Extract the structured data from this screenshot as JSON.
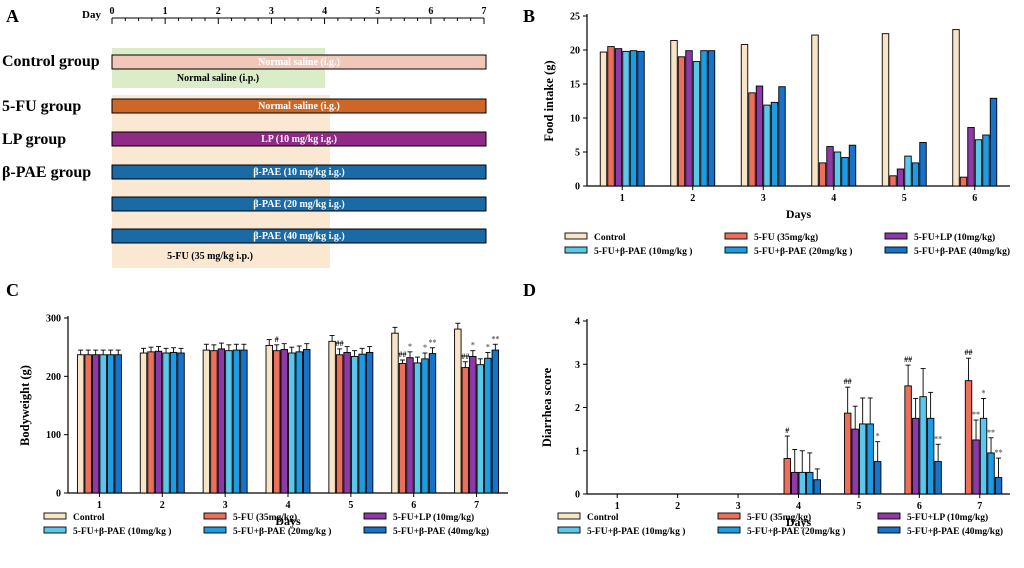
{
  "colors": {
    "control": "#f8e4c6",
    "fu": "#ec6f5b",
    "lp": "#8d3aa8",
    "pae10": "#5bc7ec",
    "pae20": "#1d9be3",
    "pae40": "#1772c9",
    "ctrl_bar_fill": "#f1c7ba",
    "fu_bar_fill": "#cc6727",
    "lp_bar_fill": "#8f2a86",
    "pae_bar_fill": "#1a6aa6",
    "ctrl_shade": "#dbecc8",
    "fu_shade": "#fae8d3",
    "annot": "#666666"
  },
  "legend": {
    "items": [
      {
        "key": "control",
        "label": "Control"
      },
      {
        "key": "fu",
        "label": "5-FU (35mg/kg)"
      },
      {
        "key": "lp",
        "label": "5-FU+LP (10mg/kg)"
      },
      {
        "key": "pae10",
        "label": "5-FU+β-PAE (10mg/kg )"
      },
      {
        "key": "pae20",
        "label": "5-FU+β-PAE (20mg/kg )"
      },
      {
        "key": "pae40",
        "label": "5-FU+β-PAE (40mg/kg)"
      }
    ]
  },
  "panels": {
    "a": {
      "letter": "A",
      "timeline_label": "Day",
      "days": [
        "0",
        "1",
        "2",
        "3",
        "4",
        "5",
        "6",
        "7"
      ],
      "groups": [
        {
          "name": "Control group",
          "bars": [
            {
              "label": "Normal saline (i.g.)",
              "fill": "ctrl_bar_fill"
            }
          ]
        },
        {
          "name": "5-FU group",
          "bars": [
            {
              "label": "Normal saline (i.g.)",
              "fill": "fu_bar_fill"
            }
          ]
        },
        {
          "name": "LP group",
          "bars": [
            {
              "label": "LP (10 mg/kg i.g.)",
              "fill": "lp_bar_fill"
            }
          ]
        },
        {
          "name": "β-PAE group",
          "bars": [
            {
              "label": "β-PAE (10 mg/kg i.g.)",
              "fill": "pae_bar_fill"
            },
            {
              "label": "β-PAE (20 mg/kg i.g.)",
              "fill": "pae_bar_fill"
            },
            {
              "label": "β-PAE (40 mg/kg i.g.)",
              "fill": "pae_bar_fill"
            }
          ]
        }
      ],
      "control_shade_label": "Normal saline (i.p.)",
      "fu_shade_label": "5-FU (35 mg/kg i.p.)",
      "treatment_start_day": 0,
      "treatment_end_day": 7,
      "injection_end_day": 4
    },
    "b": {
      "letter": "B"
    },
    "c": {
      "letter": "C"
    },
    "d": {
      "letter": "D"
    }
  },
  "chart_data": [
    {
      "id": "b",
      "type": "bar",
      "title": "",
      "xlabel": "Days",
      "ylabel": "Food intake (g)",
      "categories": [
        "1",
        "2",
        "3",
        "4",
        "5",
        "6"
      ],
      "ylim": [
        0,
        25
      ],
      "yticks": [
        0,
        5,
        10,
        15,
        20,
        25
      ],
      "series": [
        {
          "name": "Control",
          "key": "control",
          "values": [
            19.7,
            21.4,
            20.8,
            22.2,
            22.4,
            23.0
          ]
        },
        {
          "name": "5-FU (35mg/kg)",
          "key": "fu",
          "values": [
            20.5,
            19.0,
            13.7,
            3.4,
            1.5,
            1.3
          ]
        },
        {
          "name": "5-FU+LP (10mg/kg)",
          "key": "lp",
          "values": [
            20.2,
            19.9,
            14.7,
            5.8,
            2.5,
            8.6
          ]
        },
        {
          "name": "5-FU+β-PAE (10mg/kg )",
          "key": "pae10",
          "values": [
            19.8,
            18.3,
            11.9,
            5.0,
            4.4,
            6.8
          ]
        },
        {
          "name": "5-FU+β-PAE (20mg/kg )",
          "key": "pae20",
          "values": [
            19.9,
            19.9,
            12.3,
            4.2,
            3.4,
            7.5
          ]
        },
        {
          "name": "5-FU+β-PAE (40mg/kg)",
          "key": "pae40",
          "values": [
            19.8,
            19.9,
            14.6,
            6.0,
            6.4,
            12.9
          ]
        }
      ]
    },
    {
      "id": "c",
      "type": "bar",
      "title": "",
      "xlabel": "Days",
      "ylabel": "Bodyweight (g)",
      "categories": [
        "1",
        "2",
        "3",
        "4",
        "5",
        "6",
        "7"
      ],
      "ylim": [
        0,
        300
      ],
      "yticks": [
        0,
        100,
        200,
        300
      ],
      "series": [
        {
          "name": "Control",
          "key": "control",
          "values": [
            237,
            240,
            245,
            253,
            260,
            274,
            281
          ],
          "errors": [
            8,
            8,
            10,
            10,
            10,
            10,
            10
          ]
        },
        {
          "name": "5-FU (35mg/kg)",
          "key": "fu",
          "values": [
            237,
            242,
            244,
            244,
            237,
            222,
            215
          ],
          "errors": [
            8,
            8,
            10,
            10,
            10,
            6,
            10
          ]
        },
        {
          "name": "5-FU+LP (10mg/kg)",
          "key": "lp",
          "values": [
            237,
            243,
            247,
            246,
            241,
            232,
            234
          ],
          "errors": [
            8,
            8,
            10,
            10,
            10,
            10,
            10
          ]
        },
        {
          "name": "5-FU+β-PAE (10mg/kg )",
          "key": "pae10",
          "values": [
            237,
            240,
            244,
            240,
            234,
            223,
            220
          ],
          "errors": [
            8,
            8,
            10,
            10,
            10,
            10,
            10
          ]
        },
        {
          "name": "5-FU+β-PAE (20mg/kg )",
          "key": "pae20",
          "values": [
            237,
            241,
            245,
            242,
            238,
            230,
            231
          ],
          "errors": [
            8,
            8,
            10,
            10,
            10,
            10,
            10
          ]
        },
        {
          "name": "5-FU+β-PAE (40mg/kg)",
          "key": "pae40",
          "values": [
            237,
            240,
            245,
            246,
            241,
            239,
            245
          ],
          "errors": [
            8,
            8,
            10,
            10,
            10,
            10,
            10
          ]
        }
      ],
      "annotations": [
        {
          "category": "4",
          "series": "fu",
          "text": "#"
        },
        {
          "category": "5",
          "series": "fu",
          "text": "##"
        },
        {
          "category": "6",
          "series": "fu",
          "text": "##"
        },
        {
          "category": "6",
          "series": "lp",
          "text": "*"
        },
        {
          "category": "6",
          "series": "pae20",
          "text": "*"
        },
        {
          "category": "6",
          "series": "pae40",
          "text": "**"
        },
        {
          "category": "7",
          "series": "fu",
          "text": "##"
        },
        {
          "category": "7",
          "series": "lp",
          "text": "*"
        },
        {
          "category": "7",
          "series": "pae20",
          "text": "*"
        },
        {
          "category": "7",
          "series": "pae40",
          "text": "**"
        }
      ]
    },
    {
      "id": "d",
      "type": "bar",
      "title": "",
      "xlabel": "Days",
      "ylabel": "Diarrhea score",
      "categories": [
        "1",
        "2",
        "3",
        "4",
        "5",
        "6",
        "7"
      ],
      "ylim": [
        0,
        4
      ],
      "yticks": [
        0,
        1,
        2,
        3,
        4
      ],
      "series": [
        {
          "name": "Control",
          "key": "control",
          "values": [
            0,
            0,
            0,
            0,
            0,
            0,
            0
          ],
          "errors": [
            0,
            0,
            0,
            0,
            0,
            0,
            0
          ]
        },
        {
          "name": "5-FU (35mg/kg)",
          "key": "fu",
          "values": [
            0,
            0,
            0,
            0.82,
            1.87,
            2.5,
            2.62
          ],
          "errors": [
            0,
            0,
            0,
            0.52,
            0.6,
            0.48,
            0.52
          ]
        },
        {
          "name": "5-FU+LP (10mg/kg)",
          "key": "lp",
          "values": [
            0,
            0,
            0,
            0.5,
            1.5,
            1.75,
            1.25
          ],
          "errors": [
            0,
            0,
            0,
            0.53,
            0.53,
            0.46,
            0.46
          ]
        },
        {
          "name": "5-FU+β-PAE (10mg/kg )",
          "key": "pae10",
          "values": [
            0,
            0,
            0,
            0.5,
            1.62,
            2.25,
            1.75
          ],
          "errors": [
            0,
            0,
            0,
            0.5,
            0.6,
            0.65,
            0.46
          ]
        },
        {
          "name": "5-FU+β-PAE (20mg/kg )",
          "key": "pae20",
          "values": [
            0,
            0,
            0,
            0.5,
            1.62,
            1.75,
            0.95
          ],
          "errors": [
            0,
            0,
            0,
            0.45,
            0.6,
            0.6,
            0.35
          ]
        },
        {
          "name": "5-FU+β-PAE (40mg/kg)",
          "key": "pae40",
          "values": [
            0,
            0,
            0,
            0.33,
            0.75,
            0.75,
            0.38
          ],
          "errors": [
            0,
            0,
            0,
            0.25,
            0.46,
            0.4,
            0.45
          ]
        }
      ],
      "annotations": [
        {
          "category": "4",
          "series": "fu",
          "text": "#"
        },
        {
          "category": "5",
          "series": "fu",
          "text": "##"
        },
        {
          "category": "6",
          "series": "fu",
          "text": "##"
        },
        {
          "category": "6",
          "series": "pae40",
          "text": "**"
        },
        {
          "category": "5",
          "series": "pae40",
          "text": "*"
        },
        {
          "category": "7",
          "series": "fu",
          "text": "##"
        },
        {
          "category": "7",
          "series": "lp",
          "text": "**"
        },
        {
          "category": "7",
          "series": "pae10",
          "text": "*"
        },
        {
          "category": "7",
          "series": "pae20",
          "text": "**"
        },
        {
          "category": "7",
          "series": "pae40",
          "text": "**"
        }
      ]
    }
  ]
}
